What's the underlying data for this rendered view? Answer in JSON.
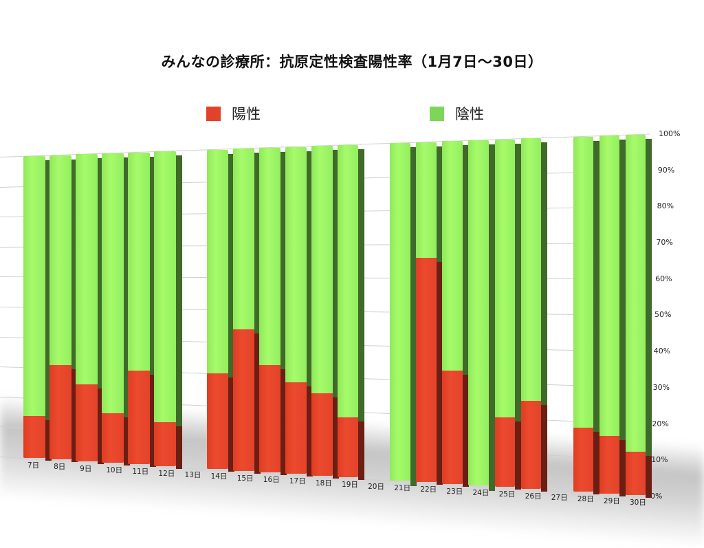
{
  "chart_data": {
    "type": "bar",
    "stacked": true,
    "percent_stacked": true,
    "three_d": true,
    "title": "みんなの診療所：抗原定性検査陽性率（1月7日〜30日）",
    "xlabel": "",
    "ylabel": "",
    "ylim": [
      0,
      100
    ],
    "y_ticks": [
      "0%",
      "10%",
      "20%",
      "30%",
      "40%",
      "50%",
      "60%",
      "70%",
      "80%",
      "90%",
      "100%"
    ],
    "grid": true,
    "legend_position": "top",
    "categories": [
      "7日",
      "8日",
      "9日",
      "10日",
      "11日",
      "12日",
      "13日",
      "14日",
      "15日",
      "16日",
      "17日",
      "18日",
      "19日",
      "20日",
      "21日",
      "22日",
      "23日",
      "24日",
      "25日",
      "26日",
      "27日",
      "28日",
      "29日",
      "30日"
    ],
    "series": [
      {
        "name": "陽性",
        "color": "#e8452b",
        "values": [
          14,
          31,
          25,
          16,
          30,
          14,
          null,
          30,
          44,
          33,
          28,
          25,
          18,
          null,
          0,
          66,
          33,
          0,
          20,
          25,
          null,
          18,
          16,
          12
        ]
      },
      {
        "name": "陰性",
        "color": "#8fdc55",
        "values": [
          86,
          69,
          75,
          84,
          70,
          86,
          null,
          70,
          56,
          67,
          72,
          75,
          82,
          null,
          100,
          34,
          67,
          100,
          80,
          75,
          null,
          82,
          84,
          88
        ]
      }
    ]
  },
  "legend": {
    "positive_label": "陽性",
    "negative_label": "陰性",
    "positive_color": "#e0432a",
    "negative_color": "#7dd65a"
  }
}
